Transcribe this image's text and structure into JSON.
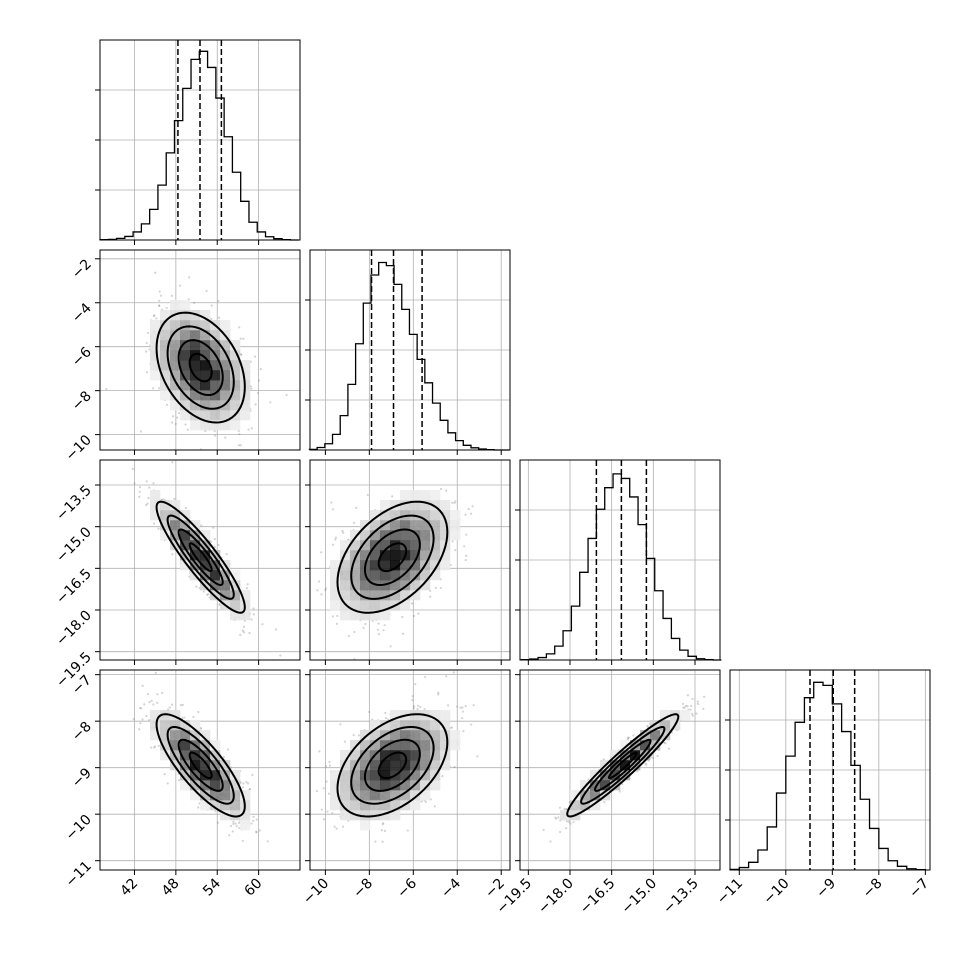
{
  "chart_data": {
    "type": "corner",
    "parameters": [
      {
        "id": "p0",
        "range": [
          37,
          66
        ],
        "ticks": [
          42,
          48,
          54,
          60
        ],
        "tick_labels": [
          "42",
          "48",
          "54",
          "60"
        ],
        "hist": {
          "bins": [
            37.6,
            38.8,
            40.0,
            41.2,
            42.4,
            43.6,
            44.8,
            46.0,
            47.2,
            48.4,
            49.6,
            50.8,
            52.0,
            53.2,
            54.4,
            55.6,
            56.8,
            58.0,
            59.2,
            60.4,
            61.6,
            62.8,
            64.0,
            65.2
          ],
          "counts": [
            1,
            2,
            5,
            11,
            25,
            50,
            95,
            170,
            270,
            370,
            470,
            560,
            585,
            535,
            440,
            320,
            210,
            120,
            55,
            25,
            10,
            4,
            1,
            0
          ],
          "ymax": 620
        },
        "quantiles": [
          48.3,
          51.5,
          54.6
        ]
      },
      {
        "id": "p1",
        "range": [
          -10.7,
          -1.6
        ],
        "ticks": [
          -10,
          -8,
          -6,
          -4,
          -2
        ],
        "tick_labels": [
          "−10",
          "−8",
          "−6",
          "−4",
          "−2"
        ],
        "hist": {
          "bins": [
            -10.55,
            -10.2,
            -9.85,
            -9.5,
            -9.15,
            -8.8,
            -8.45,
            -8.1,
            -7.75,
            -7.4,
            -7.05,
            -6.7,
            -6.35,
            -6.0,
            -5.65,
            -5.3,
            -4.95,
            -4.6,
            -4.25,
            -3.9,
            -3.55,
            -3.2,
            -2.85,
            -2.5,
            -2.15,
            -1.8
          ],
          "counts": [
            2,
            8,
            20,
            50,
            110,
            210,
            340,
            470,
            560,
            600,
            590,
            530,
            450,
            370,
            290,
            215,
            150,
            95,
            55,
            30,
            15,
            7,
            3,
            1,
            0,
            0
          ],
          "ymax": 640
        },
        "quantiles": [
          -7.9,
          -6.9,
          -5.6
        ]
      },
      {
        "id": "p2",
        "range": [
          -19.8,
          -12.6
        ],
        "ticks": [
          -19.5,
          -18.0,
          -16.5,
          -15.0,
          -13.5
        ],
        "tick_labels": [
          "−19.5",
          "−18.0",
          "−16.5",
          "−15.0",
          "−13.5"
        ],
        "hist": {
          "bins": [
            -19.6,
            -19.3,
            -19.0,
            -18.7,
            -18.4,
            -18.1,
            -17.8,
            -17.5,
            -17.2,
            -16.9,
            -16.6,
            -16.3,
            -16.0,
            -15.7,
            -15.4,
            -15.1,
            -14.8,
            -14.5,
            -14.2,
            -13.9,
            -13.6,
            -13.3,
            -13.0,
            -12.7
          ],
          "counts": [
            1,
            3,
            8,
            20,
            45,
            95,
            175,
            285,
            395,
            490,
            560,
            605,
            590,
            530,
            440,
            330,
            225,
            135,
            70,
            32,
            12,
            4,
            1,
            0
          ],
          "ymax": 650
        },
        "quantiles": [
          -17.05,
          -16.15,
          -15.25
        ]
      },
      {
        "id": "p3",
        "range": [
          -11.2,
          -6.9
        ],
        "ticks": [
          -11,
          -10,
          -9,
          -8,
          -7
        ],
        "tick_labels": [
          "−11",
          "−10",
          "−9",
          "−8",
          "−7"
        ],
        "hist": {
          "bins": [
            -11.1,
            -10.9,
            -10.7,
            -10.5,
            -10.3,
            -10.1,
            -9.9,
            -9.7,
            -9.5,
            -9.3,
            -9.1,
            -8.9,
            -8.7,
            -8.5,
            -8.3,
            -8.1,
            -7.9,
            -7.7,
            -7.5,
            -7.3,
            -7.1
          ],
          "counts": [
            2,
            8,
            25,
            65,
            140,
            250,
            370,
            480,
            560,
            610,
            600,
            540,
            450,
            340,
            230,
            135,
            70,
            30,
            12,
            4,
            1
          ],
          "ymax": 650
        },
        "quantiles": [
          -9.48,
          -8.98,
          -8.52
        ]
      }
    ],
    "pairs": [
      {
        "row": 1,
        "col": 0,
        "mean": [
          51.6,
          -6.95
        ],
        "sd": [
          3.2,
          1.25
        ],
        "rho": -0.35
      },
      {
        "row": 2,
        "col": 0,
        "mean": [
          51.6,
          -16.1
        ],
        "sd": [
          3.2,
          1.0
        ],
        "rho": -0.9
      },
      {
        "row": 2,
        "col": 1,
        "mean": [
          -6.95,
          -16.1
        ],
        "sd": [
          1.25,
          1.0
        ],
        "rho": 0.45
      },
      {
        "row": 3,
        "col": 0,
        "mean": [
          51.6,
          -8.95
        ],
        "sd": [
          3.2,
          0.55
        ],
        "rho": -0.8
      },
      {
        "row": 3,
        "col": 1,
        "mean": [
          -6.95,
          -8.95
        ],
        "sd": [
          1.25,
          0.55
        ],
        "rho": 0.45
      },
      {
        "row": 3,
        "col": 2,
        "mean": [
          -16.1,
          -8.95
        ],
        "sd": [
          1.0,
          0.55
        ],
        "rho": 0.95
      }
    ],
    "contour_levels": [
      "0.5",
      "1.0",
      "1.5",
      "2.0"
    ],
    "grid": true,
    "title": "",
    "xlabel": "",
    "ylabel": ""
  }
}
